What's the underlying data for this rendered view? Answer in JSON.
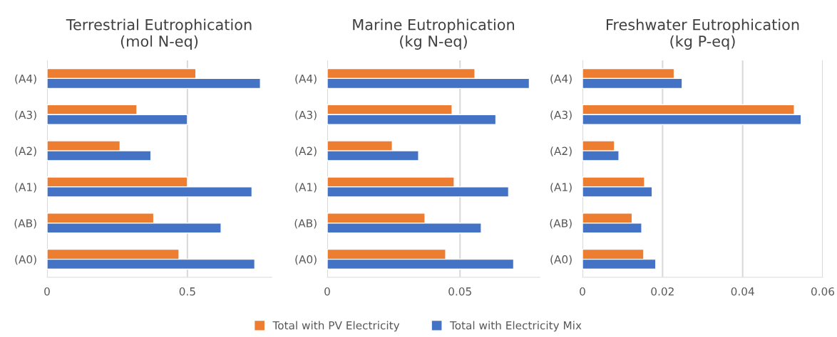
{
  "chart_data": [
    {
      "type": "bar",
      "orientation": "horizontal",
      "title": "Terrestrial Eutrophication\n(mol N-eq)",
      "categories": [
        "(A4)",
        "(A3)",
        "(A2)",
        "(A1)",
        "(AB)",
        "(A0)"
      ],
      "series": [
        {
          "color": "#ed7d31",
          "values": [
            0.53,
            0.32,
            0.26,
            0.5,
            0.38,
            0.47
          ]
        },
        {
          "color": "#4472c4",
          "values": [
            0.76,
            0.5,
            0.37,
            0.73,
            0.62,
            0.74
          ]
        }
      ],
      "xlim": [
        0,
        0.8
      ],
      "xticks": [
        0,
        0.5
      ],
      "grid": "x"
    },
    {
      "type": "bar",
      "orientation": "horizontal",
      "title": "Marine Eutrophication\n(kg N-eq)",
      "categories": [
        "(A4)",
        "(A3)",
        "(A2)",
        "(A1)",
        "(AB)",
        "(A0)"
      ],
      "series": [
        {
          "name": "Total with PV Electricity",
          "color": "#ed7d31",
          "values": [
            0.0556,
            0.047,
            0.0245,
            0.0478,
            0.0368,
            0.0446
          ]
        },
        {
          "name": "Total with Electricity Mix",
          "color": "#4472c4",
          "values": [
            0.0761,
            0.0635,
            0.0344,
            0.0683,
            0.058,
            0.0702
          ]
        }
      ],
      "xlim": [
        0,
        0.08
      ],
      "xticks": [
        0,
        0.05
      ],
      "grid": "x",
      "legend": "bottom"
    },
    {
      "type": "bar",
      "orientation": "horizontal",
      "title": "Freshwater Eutrophication\n(kg P-eq)",
      "categories": [
        "(A4)",
        "(A3)",
        "(A2)",
        "(A1)",
        "(AB)",
        "(A0)"
      ],
      "series": [
        {
          "color": "#ed7d31",
          "values": [
            0.0229,
            0.0529,
            0.008,
            0.0155,
            0.0124,
            0.0153
          ]
        },
        {
          "color": "#4472c4",
          "values": [
            0.0249,
            0.0546,
            0.0091,
            0.0174,
            0.0148,
            0.0183
          ]
        }
      ],
      "xlim": [
        0,
        0.06
      ],
      "xticks": [
        0,
        0.02,
        0.04,
        0.06
      ],
      "grid": "x"
    }
  ]
}
